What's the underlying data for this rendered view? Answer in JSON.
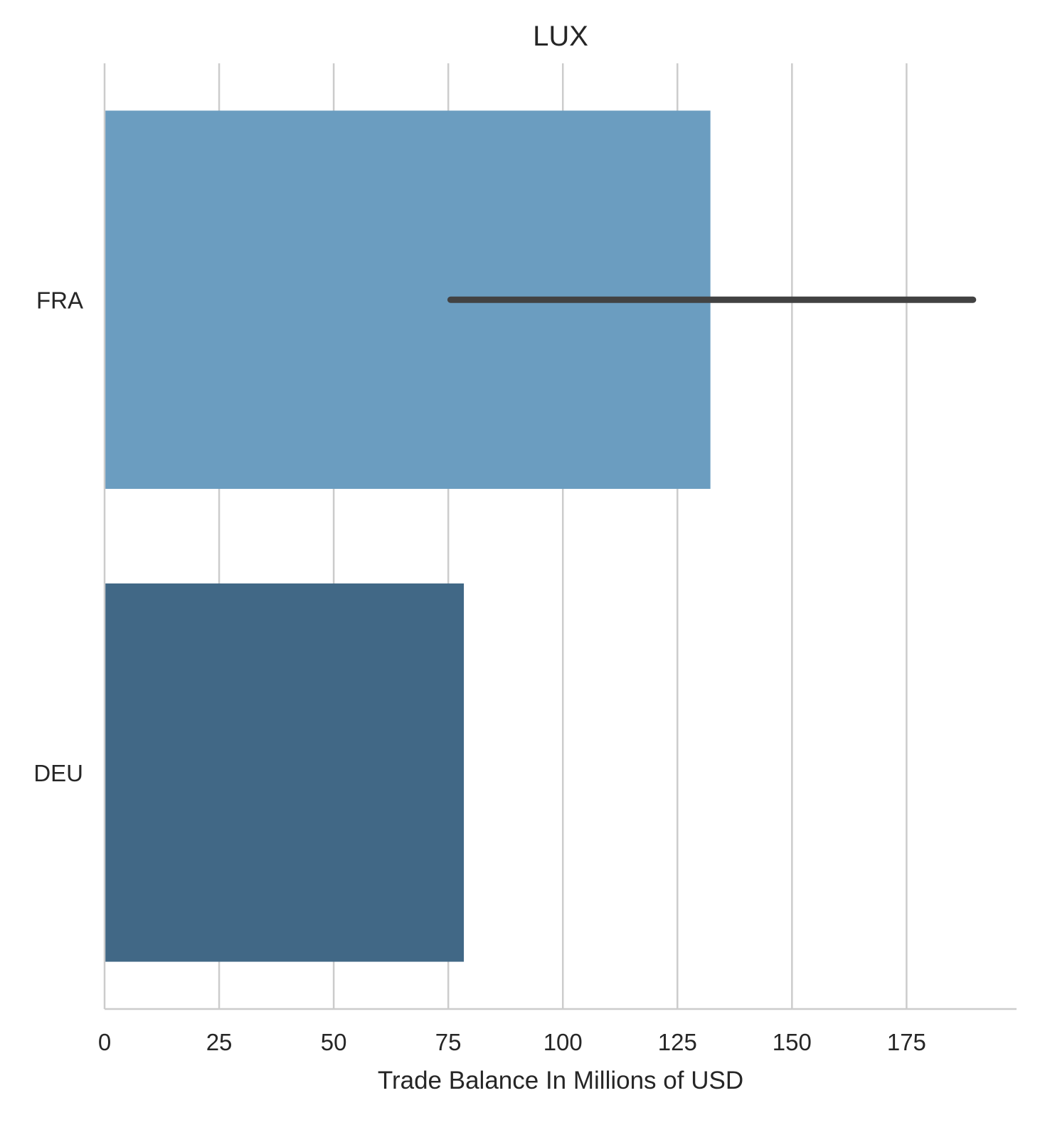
{
  "chart_data": {
    "type": "bar",
    "orientation": "horizontal",
    "title": "LUX",
    "xlabel": "Trade Balance In Millions of USD",
    "ylabel": "",
    "categories": [
      "FRA",
      "DEU"
    ],
    "values": [
      132.2,
      78.4
    ],
    "error_bars": [
      {
        "category": "FRA",
        "low": 75.5,
        "high": 189.5
      },
      null
    ],
    "bar_colors": [
      "#6b9dc0",
      "#416886"
    ],
    "error_bar_color": "#424242",
    "xlim": [
      0,
      199
    ],
    "xticks": [
      0,
      25,
      50,
      75,
      100,
      125,
      150,
      175
    ],
    "xtick_labels": [
      "0",
      "25",
      "50",
      "75",
      "100",
      "125",
      "150",
      "175"
    ],
    "grid": "vertical",
    "grid_color": "#cccccc",
    "legend": "none"
  }
}
